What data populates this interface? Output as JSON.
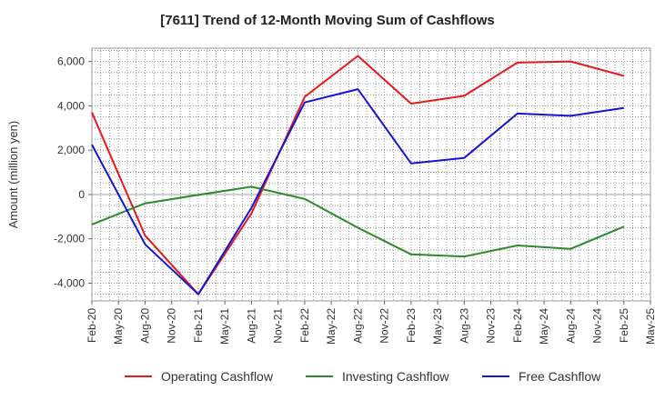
{
  "chart_data": {
    "type": "line",
    "title": "[7611]  Trend of 12-Month Moving Sum of Cashflows",
    "ylabel": "Amount (million yen)",
    "xlabel": "",
    "ylim": [
      -4800,
      6600
    ],
    "yticks": [
      6000,
      4000,
      2000,
      0,
      -2000,
      -4000
    ],
    "ytick_labels": [
      "6,000",
      "4,000",
      "2,000",
      "0",
      "-2,000",
      "-4,000"
    ],
    "categories": [
      "Feb-20",
      "May-20",
      "Aug-20",
      "Nov-20",
      "Feb-21",
      "May-21",
      "Aug-21",
      "Nov-21",
      "Feb-22",
      "May-22",
      "Aug-22",
      "Nov-22",
      "Feb-23",
      "May-23",
      "Aug-23",
      "Nov-23",
      "Feb-24",
      "May-24",
      "Aug-24",
      "Nov-24",
      "Feb-25",
      "May-25"
    ],
    "grid": true,
    "legend_position": "bottom",
    "series": [
      {
        "name": "Operating Cashflow",
        "color": "#e8191b",
        "x": [
          "Feb-20",
          "Aug-20",
          "Feb-21",
          "Aug-21",
          "Feb-22",
          "Aug-22",
          "Feb-23",
          "Aug-23",
          "Feb-24",
          "Aug-24",
          "Feb-25"
        ],
        "values": [
          3700,
          -1850,
          -4500,
          -850,
          4400,
          6250,
          4100,
          4450,
          5950,
          6000,
          5350
        ]
      },
      {
        "name": "Investing Cashflow",
        "color": "#2a8a2a",
        "x": [
          "Feb-20",
          "Aug-20",
          "Feb-21",
          "Aug-21",
          "Feb-22",
          "Aug-22",
          "Feb-23",
          "Aug-23",
          "Feb-24",
          "Aug-24",
          "Feb-25"
        ],
        "values": [
          -1350,
          -400,
          -20,
          350,
          -200,
          -1500,
          -2700,
          -2800,
          -2300,
          -2450,
          -1450
        ]
      },
      {
        "name": "Free Cashflow",
        "color": "#1515d4",
        "x": [
          "Feb-20",
          "Aug-20",
          "Feb-21",
          "Aug-21",
          "Feb-22",
          "Aug-22",
          "Feb-23",
          "Aug-23",
          "Feb-24",
          "Aug-24",
          "Feb-25"
        ],
        "values": [
          2250,
          -2250,
          -4500,
          -600,
          4150,
          4750,
          1400,
          1650,
          3650,
          3550,
          3900
        ]
      }
    ]
  }
}
